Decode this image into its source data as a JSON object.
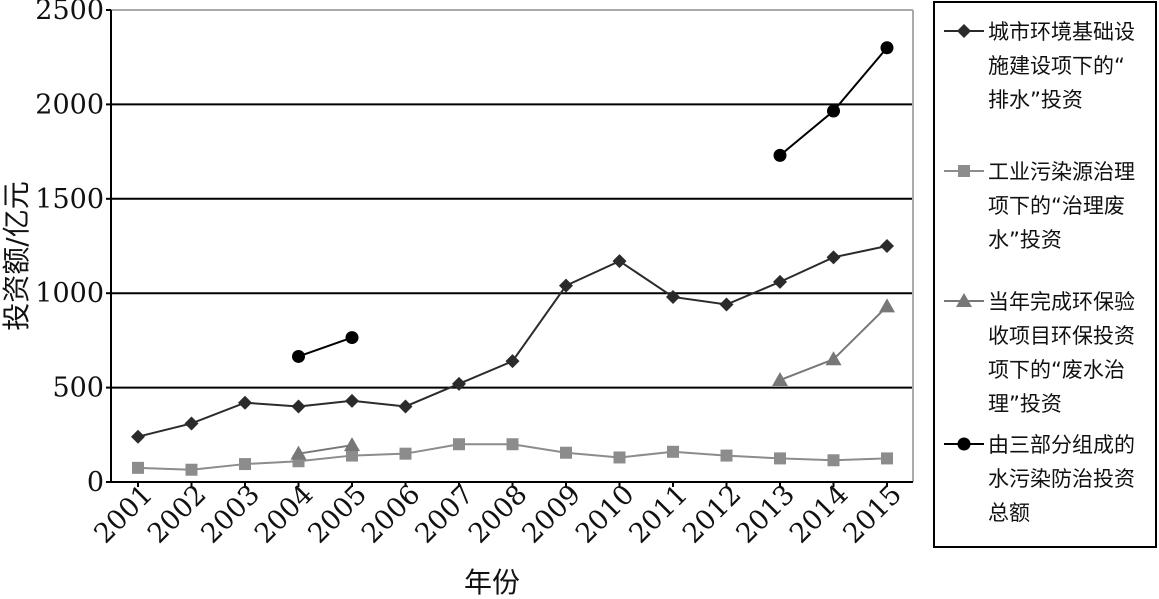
{
  "chart_data": {
    "type": "line",
    "title": "",
    "xlabel": "年份",
    "ylabel": "投资额/亿元",
    "categories": [
      "2001",
      "2002",
      "2003",
      "2004",
      "2005",
      "2006",
      "2007",
      "2008",
      "2009",
      "2010",
      "2011",
      "2012",
      "2013",
      "2014",
      "2015"
    ],
    "ylim": [
      0,
      2500
    ],
    "yticks": [
      "0",
      "500",
      "1000",
      "1500",
      "2000",
      "2500"
    ],
    "grid": "horizontal",
    "legend_position": "right",
    "series": [
      {
        "name": "城市环境基础设施建设项下的“排水”投资",
        "legend_lines": [
          "城市环境基础设",
          "施建设项下的“",
          "排水”投资"
        ],
        "color": "#2b2b2b",
        "marker": "diamond",
        "values": [
          240,
          310,
          420,
          400,
          430,
          400,
          520,
          640,
          1040,
          1170,
          980,
          940,
          1060,
          1190,
          1250
        ]
      },
      {
        "name": "工业污染源治理项下的“治理废水”投资",
        "legend_lines": [
          "工业污染源治理",
          "项下的“治理废",
          "水”投资"
        ],
        "color": "#8c8c8c",
        "marker": "square",
        "values": [
          75,
          65,
          95,
          110,
          140,
          150,
          200,
          200,
          155,
          130,
          160,
          140,
          125,
          115,
          125
        ]
      },
      {
        "name": "当年完成环保验收项目环保投资项下的“废水治理”投资",
        "legend_lines": [
          "当年完成环保验",
          "收项目环保投资",
          "项下的“废水治",
          "理”投资"
        ],
        "color": "#777777",
        "marker": "triangle",
        "values": [
          null,
          null,
          null,
          150,
          195,
          null,
          null,
          null,
          null,
          null,
          null,
          null,
          540,
          650,
          930
        ]
      },
      {
        "name": "由三部分组成的水污染防治投资总额",
        "legend_lines": [
          "由三部分组成的",
          "水污染防治投资",
          "总额"
        ],
        "color": "#000000",
        "marker": "circle",
        "values": [
          null,
          null,
          null,
          665,
          765,
          null,
          null,
          null,
          null,
          null,
          null,
          null,
          1730,
          1965,
          2300
        ]
      }
    ]
  }
}
